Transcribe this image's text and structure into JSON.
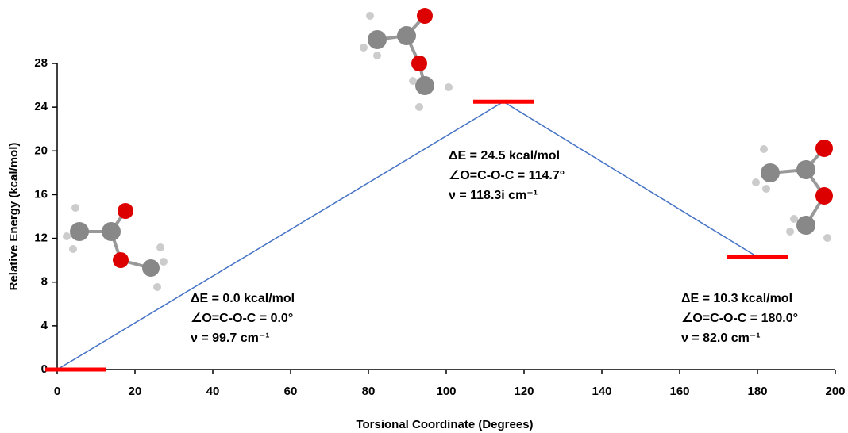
{
  "chart_data": {
    "type": "line",
    "x_label": "Torsional Coordinate (Degrees)",
    "y_label": "Relative Energy (kcal/mol)",
    "x": [
      0,
      114.7,
      180
    ],
    "series": [
      {
        "color": "#4472c4",
        "values": [
          0,
          24.5,
          10.3
        ]
      }
    ],
    "level_color": "#ff0000",
    "xlim": [
      0,
      200
    ],
    "xticks": [
      0,
      20,
      40,
      60,
      80,
      100,
      120,
      140,
      160,
      180,
      200
    ],
    "ylim": [
      0,
      28
    ],
    "yticks": [
      0,
      4,
      8,
      12,
      16,
      20,
      24,
      28
    ],
    "annotations": [
      [
        "ΔE = 0.0 kcal/mol",
        "∠O=C-O-C  = 0.0°",
        "ν = 99.7 cm⁻¹"
      ],
      [
        "ΔE = 24.5 kcal/mol",
        "∠O=C-O-C  = 114.7°",
        "ν = 118.3i cm⁻¹"
      ],
      [
        "ΔE = 10.3 kcal/mol",
        "∠O=C-O-C  = 180.0°",
        "ν = 82.0 cm⁻¹"
      ]
    ]
  }
}
